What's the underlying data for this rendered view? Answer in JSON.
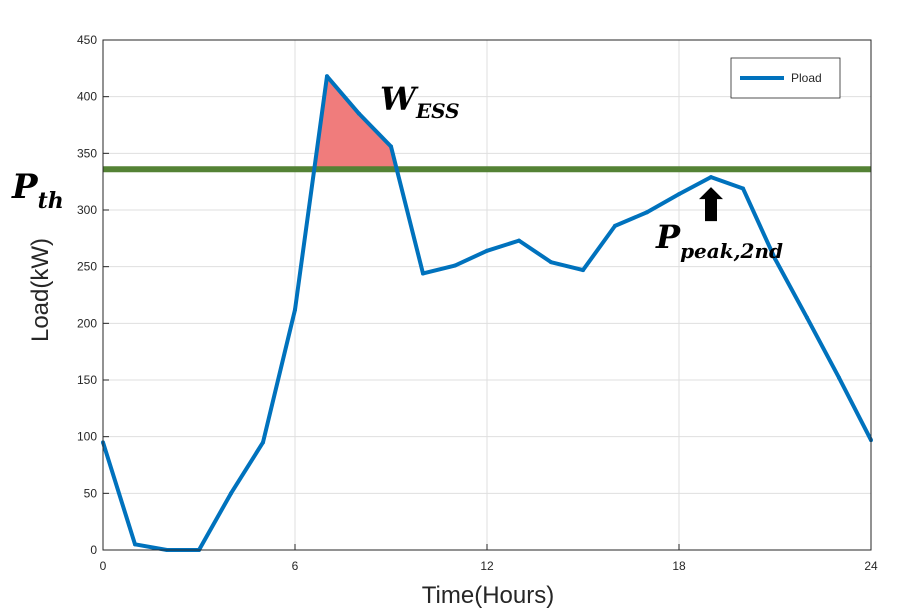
{
  "chart_data": {
    "type": "line",
    "xlabel": "Time(Hours)",
    "ylabel": "Load(kW)",
    "xlim": [
      0,
      24
    ],
    "ylim": [
      0,
      450
    ],
    "xticks": [
      0,
      6,
      12,
      18,
      24
    ],
    "yticks": [
      0,
      50,
      100,
      150,
      200,
      250,
      300,
      350,
      400,
      450
    ],
    "grid": true,
    "legend_position": "top-right",
    "series": [
      {
        "name": "Pload",
        "color": "#0072BD",
        "x": [
          0,
          1,
          2,
          3,
          4,
          5,
          6,
          7,
          8,
          9,
          10,
          11,
          12,
          13,
          14,
          15,
          16,
          17,
          18,
          19,
          20,
          21,
          22,
          23,
          24
        ],
        "y": [
          95,
          5,
          0,
          0,
          50,
          95,
          212,
          418,
          385,
          356,
          244,
          251,
          264,
          273,
          254,
          247,
          286,
          298,
          314,
          329,
          319,
          257,
          205,
          152,
          97
        ]
      }
    ],
    "threshold": {
      "value": 336,
      "color": "#548235",
      "label_main": "P",
      "label_sub": "th"
    },
    "ess_area": {
      "color": "#F07C7C",
      "label_main": "W",
      "label_sub": "ESS"
    },
    "second_peak": {
      "x": 19,
      "label_main": "P",
      "label_sub": "peak,2nd"
    }
  }
}
